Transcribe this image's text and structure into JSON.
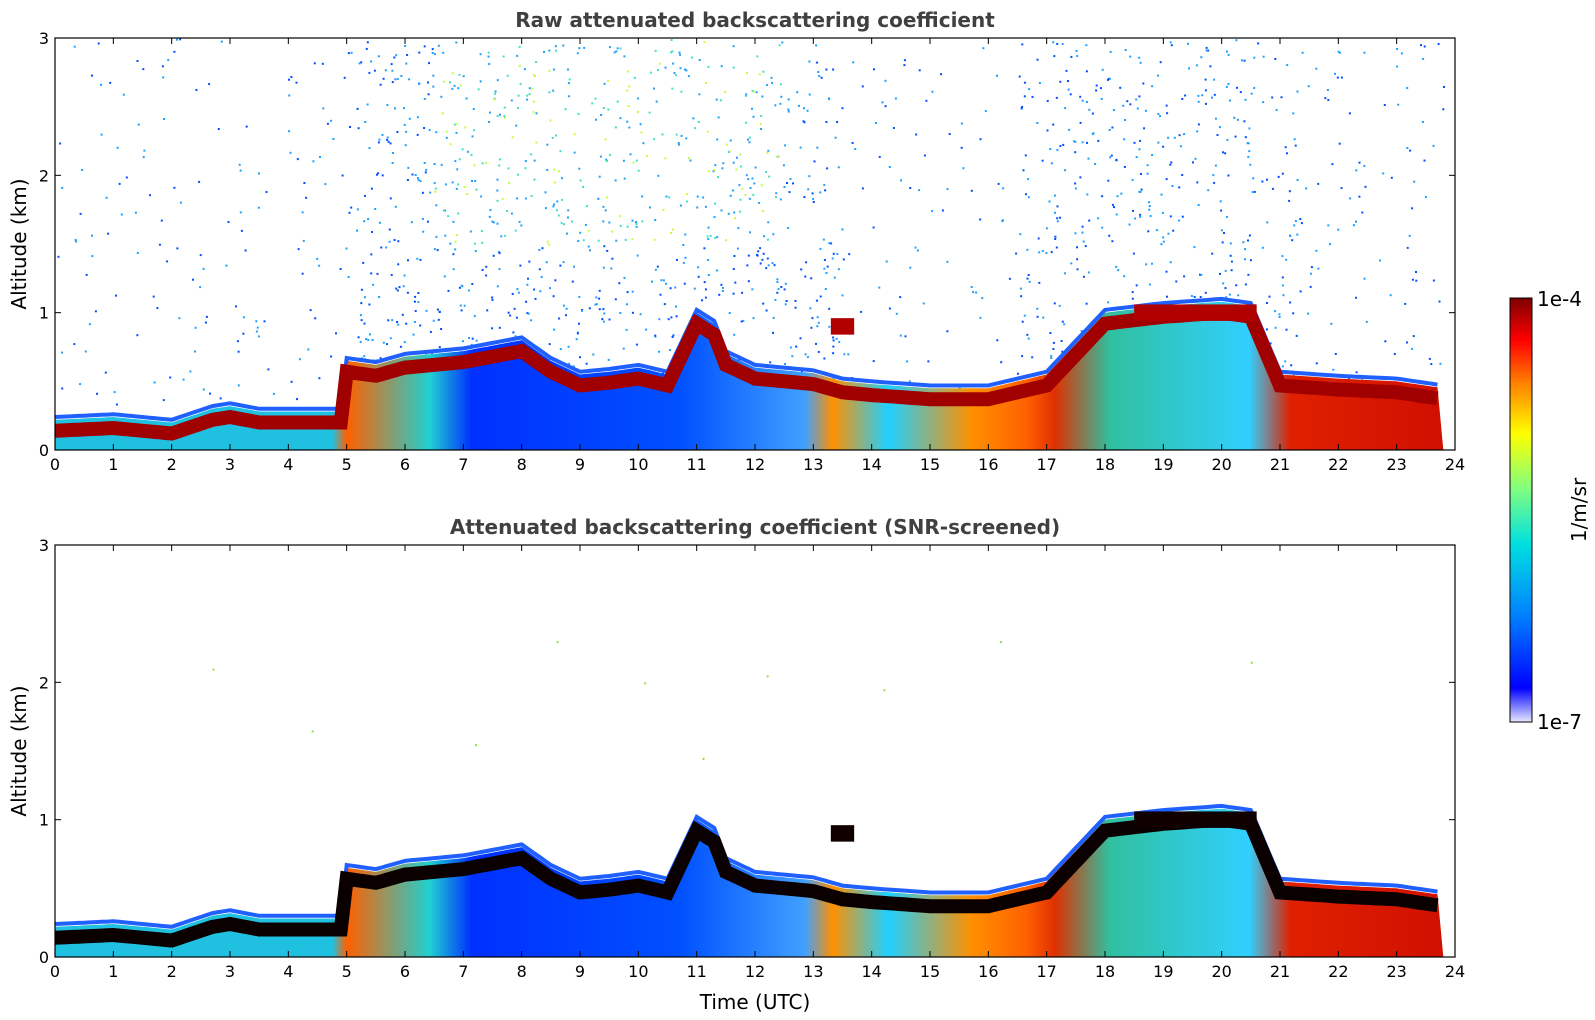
{
  "chart_data": [
    {
      "type": "heatmap",
      "title": "Raw attenuated backscattering coefficient",
      "xlabel": "",
      "ylabel": "Altitude (km)",
      "xlim": [
        0,
        24
      ],
      "ylim": [
        0,
        3
      ],
      "xticks": [
        "0",
        "1",
        "2",
        "3",
        "4",
        "5",
        "6",
        "7",
        "8",
        "9",
        "10",
        "11",
        "12",
        "13",
        "14",
        "15",
        "16",
        "17",
        "18",
        "19",
        "20",
        "21",
        "22",
        "23",
        "24"
      ],
      "yticks": [
        "0",
        "1",
        "2",
        "3"
      ],
      "layer_top_km": {
        "x": [
          0,
          1,
          2,
          2.7,
          3,
          3.5,
          4,
          4.9,
          5,
          5.5,
          6,
          6.5,
          7,
          7.5,
          8,
          8.5,
          9,
          9.5,
          10,
          10.5,
          11,
          11.3,
          11.5,
          12,
          12.5,
          13,
          13.5,
          14,
          15,
          16,
          17,
          18,
          19,
          20,
          20.5,
          21,
          22,
          23,
          23.8
        ],
        "y": [
          0.22,
          0.24,
          0.2,
          0.3,
          0.32,
          0.28,
          0.28,
          0.28,
          0.65,
          0.62,
          0.68,
          0.7,
          0.72,
          0.76,
          0.8,
          0.65,
          0.55,
          0.57,
          0.6,
          0.55,
          1.0,
          0.92,
          0.7,
          0.6,
          0.58,
          0.56,
          0.5,
          0.48,
          0.45,
          0.45,
          0.55,
          1.0,
          1.05,
          1.08,
          1.05,
          0.55,
          0.52,
          0.5,
          0.45
        ]
      },
      "elevated_layers": [
        {
          "x0": 18.5,
          "x1": 20.6,
          "y": 1.0
        },
        {
          "x0": 13.3,
          "x1": 13.7,
          "y": 0.9
        }
      ]
    },
    {
      "type": "heatmap",
      "title": "Attenuated backscattering coefficient (SNR-screened)",
      "xlabel": "Time (UTC)",
      "ylabel": "Altitude (km)",
      "xlim": [
        0,
        24
      ],
      "ylim": [
        0,
        3
      ],
      "xticks": [
        "0",
        "1",
        "2",
        "3",
        "4",
        "5",
        "6",
        "7",
        "8",
        "9",
        "10",
        "11",
        "12",
        "13",
        "14",
        "15",
        "16",
        "17",
        "18",
        "19",
        "20",
        "21",
        "22",
        "23",
        "24"
      ],
      "yticks": [
        "0",
        "1",
        "2",
        "3"
      ]
    }
  ],
  "colorbar": {
    "min_label": "1e-7",
    "max_label": "1e-4",
    "label": "1/m/sr",
    "stops": [
      "#e8e8ff",
      "#0000ff",
      "#0080ff",
      "#00e0e0",
      "#80ff80",
      "#ffff00",
      "#ff8000",
      "#ff0000",
      "#800000"
    ]
  }
}
